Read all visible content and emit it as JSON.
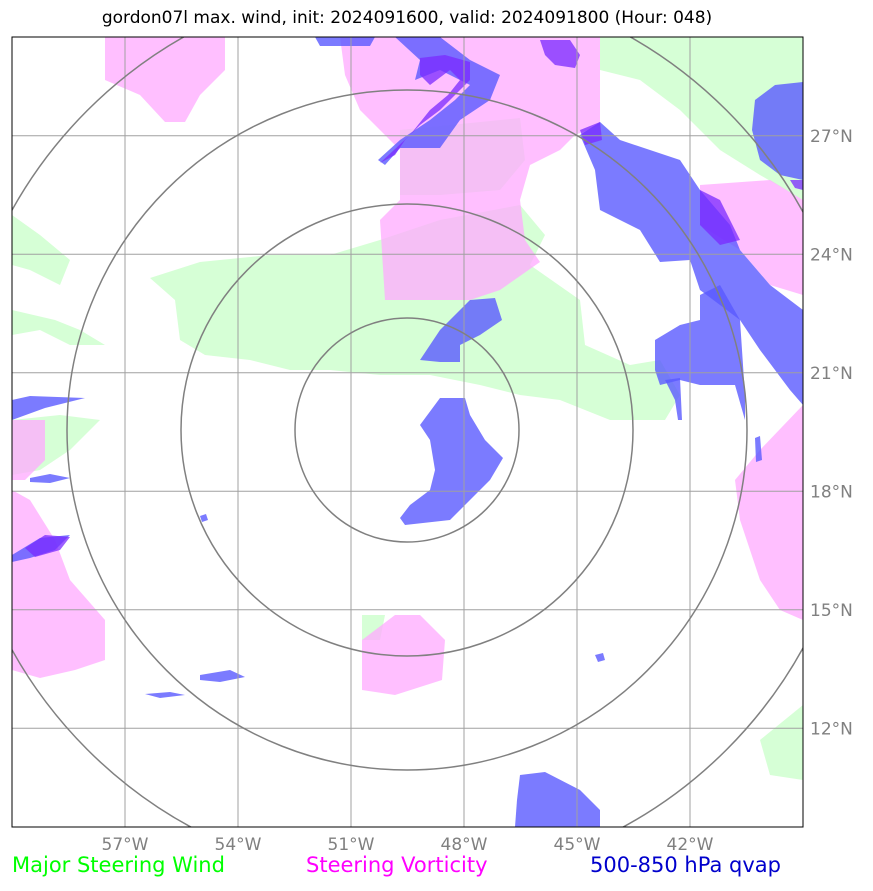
{
  "title": "gordon07l max. wind, init: 2024091600, valid: 2024091800 (Hour: 048)",
  "map": {
    "lon_range": [
      -60,
      -39
    ],
    "lat_range": [
      9.5,
      29.5
    ],
    "lon_ticks": [
      {
        "value": -57,
        "label": "57°W"
      },
      {
        "value": -54,
        "label": "54°W"
      },
      {
        "value": -51,
        "label": "51°W"
      },
      {
        "value": -48,
        "label": "48°W"
      },
      {
        "value": -45,
        "label": "45°W"
      },
      {
        "value": -42,
        "label": "42°W"
      }
    ],
    "lat_ticks": [
      {
        "value": 27,
        "label": "27°N"
      },
      {
        "value": 24,
        "label": "24°N"
      },
      {
        "value": 21,
        "label": "21°N"
      },
      {
        "value": 18,
        "label": "18°N"
      },
      {
        "value": 15,
        "label": "15°N"
      },
      {
        "value": 12,
        "label": "12°N"
      }
    ],
    "range_rings": {
      "center_lon": -49.3,
      "center_lat": 19.8,
      "count": 4
    }
  },
  "legend": [
    {
      "label": "Major Steering Wind",
      "color": "#00ff00"
    },
    {
      "label": "Steering Vorticity",
      "color": "#ff00ff"
    },
    {
      "label": "500-850 hPa qvap",
      "color": "#0000cc"
    }
  ],
  "colors": {
    "wind_fill": "#ccffcc",
    "vorticity_fill": "#ffaaff",
    "qvap_fill": "#5a5aff",
    "overlap_fill": "#8844ff",
    "grid": "#a0a0a0",
    "ring": "#808080"
  }
}
